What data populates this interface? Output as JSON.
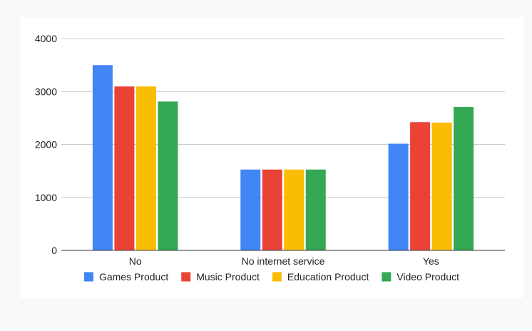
{
  "chart_data": {
    "type": "bar",
    "title": "",
    "xlabel": "",
    "ylabel": "",
    "categories": [
      "No",
      "No internet service",
      "Yes"
    ],
    "series": [
      {
        "name": "Games Product",
        "color": "#4285f4",
        "values": [
          3498,
          1526,
          2014
        ]
      },
      {
        "name": "Music Product",
        "color": "#ea4335",
        "values": [
          3095,
          1526,
          2421
        ]
      },
      {
        "name": "Education Product",
        "color": "#fbbc04",
        "values": [
          3095,
          1526,
          2413
        ]
      },
      {
        "name": "Video Product",
        "color": "#34a853",
        "values": [
          2810,
          1526,
          2707
        ]
      }
    ],
    "ylim": [
      0,
      4000
    ],
    "yticks": [
      "0",
      "1000",
      "2000",
      "3000",
      "4000"
    ],
    "grid": true,
    "legend_position": "bottom"
  }
}
